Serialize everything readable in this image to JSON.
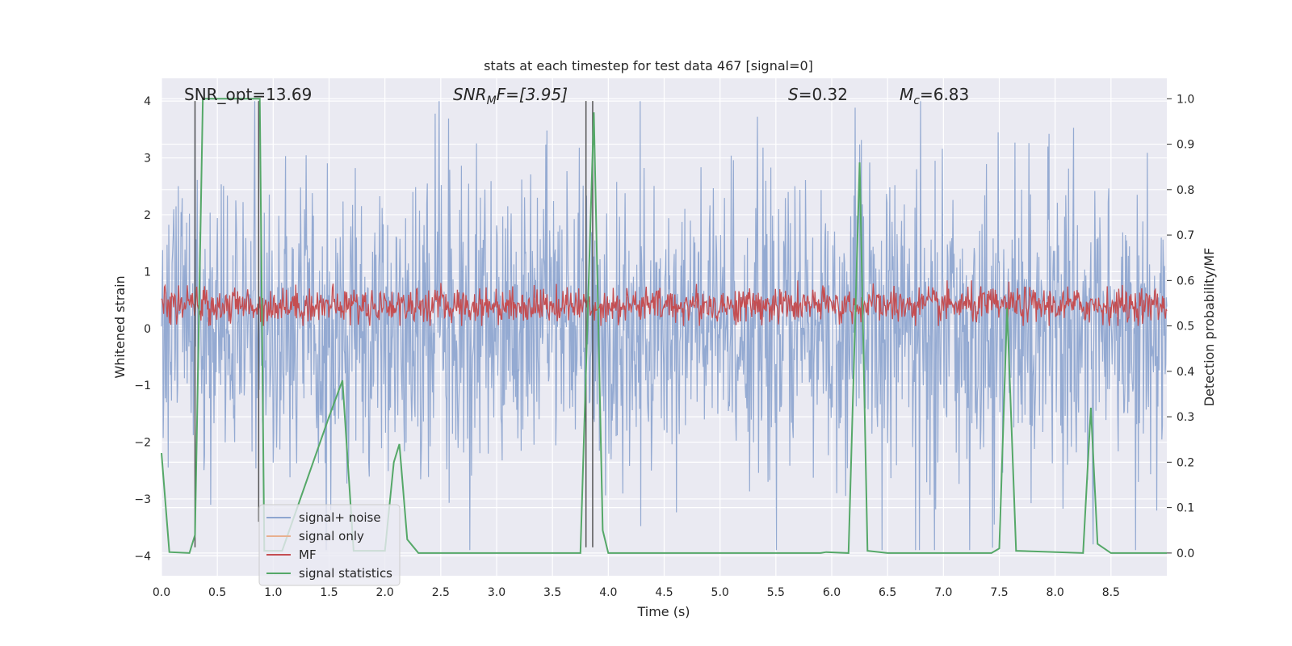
{
  "chart_data": {
    "type": "line",
    "title": "stats at each timestep for test data 467 [signal=0]",
    "xlabel": "Time (s)",
    "ylabel_left": "Whitened strain",
    "ylabel_right": "Detection probability/MF",
    "xlim": [
      0.0,
      9.0
    ],
    "ylim_left": [
      -4.35,
      4.4
    ],
    "ylim_right": [
      -0.05,
      1.045
    ],
    "xticks": [
      "0.0",
      "0.5",
      "1.0",
      "1.5",
      "2.0",
      "2.5",
      "3.0",
      "3.5",
      "4.0",
      "4.5",
      "5.0",
      "5.5",
      "6.0",
      "6.5",
      "7.0",
      "7.5",
      "8.0",
      "8.5"
    ],
    "yticks_left": [
      "4",
      "3",
      "2",
      "1",
      "0",
      "−1",
      "−2",
      "−3",
      "−4"
    ],
    "yticks_right": [
      "1.0",
      "0.9",
      "0.8",
      "0.7",
      "0.6",
      "0.5",
      "0.4",
      "0.3",
      "0.2",
      "0.1",
      "0.0"
    ],
    "annotations": {
      "snr_opt": "SNR_opt=13.69",
      "snr_mf_main": "SNR",
      "snr_mf_sub": "M",
      "snr_mf_rest": "F=[3.95]",
      "s_main": "S",
      "s_rest": "=0.32",
      "mc_main": "M",
      "mc_sub": "c",
      "mc_rest": "=6.83"
    },
    "series": [
      {
        "name": "signal+ noise",
        "color": "#8fa6d0",
        "description": "whitened strain, noise band roughly -2.5 to 2.5 with spikes to ±4"
      },
      {
        "name": "signal only",
        "color": "#e8b08f",
        "values": []
      },
      {
        "name": "MF",
        "color": "#c44e52",
        "description": "matched filter output fluctuating between 0.5 and 0.6 on right axis"
      },
      {
        "name": "signal statistics",
        "color": "#55a868",
        "x": [
          0.0,
          0.07,
          0.25,
          0.3,
          0.37,
          0.88,
          0.92,
          1.08,
          1.5,
          1.62,
          1.72,
          2.0,
          2.08,
          2.13,
          2.2,
          2.3,
          3.75,
          3.87,
          3.95,
          4.0,
          5.9,
          5.95,
          6.15,
          6.25,
          6.32,
          6.5,
          7.43,
          7.5,
          7.57,
          7.65,
          8.25,
          8.32,
          8.38,
          8.5,
          9.0
        ],
        "y": [
          0.22,
          0.002,
          0.0,
          0.04,
          1.0,
          1.0,
          0.005,
          0.005,
          0.3,
          0.38,
          0.005,
          0.005,
          0.2,
          0.24,
          0.03,
          0.0,
          0.0,
          0.97,
          0.05,
          0.0,
          0.0,
          0.002,
          0.0,
          0.86,
          0.005,
          0.0,
          0.0,
          0.01,
          0.54,
          0.005,
          0.0,
          0.32,
          0.02,
          0.0,
          0.0
        ]
      }
    ],
    "vertical_markers": [
      {
        "x": 0.3,
        "y_top": 4.0,
        "y_bottom": -3.85
      },
      {
        "x": 0.87,
        "y_top": 4.0,
        "y_bottom": -3.4
      },
      {
        "x": 3.8,
        "y_top": 4.0,
        "y_bottom": -3.85
      },
      {
        "x": 3.86,
        "y_top": 4.0,
        "y_bottom": -3.85
      }
    ],
    "legend": {
      "position": "lower-left",
      "entries": [
        "signal+ noise",
        "signal only",
        "MF",
        "signal statistics"
      ]
    },
    "grid": true,
    "noise_seed": 467
  }
}
